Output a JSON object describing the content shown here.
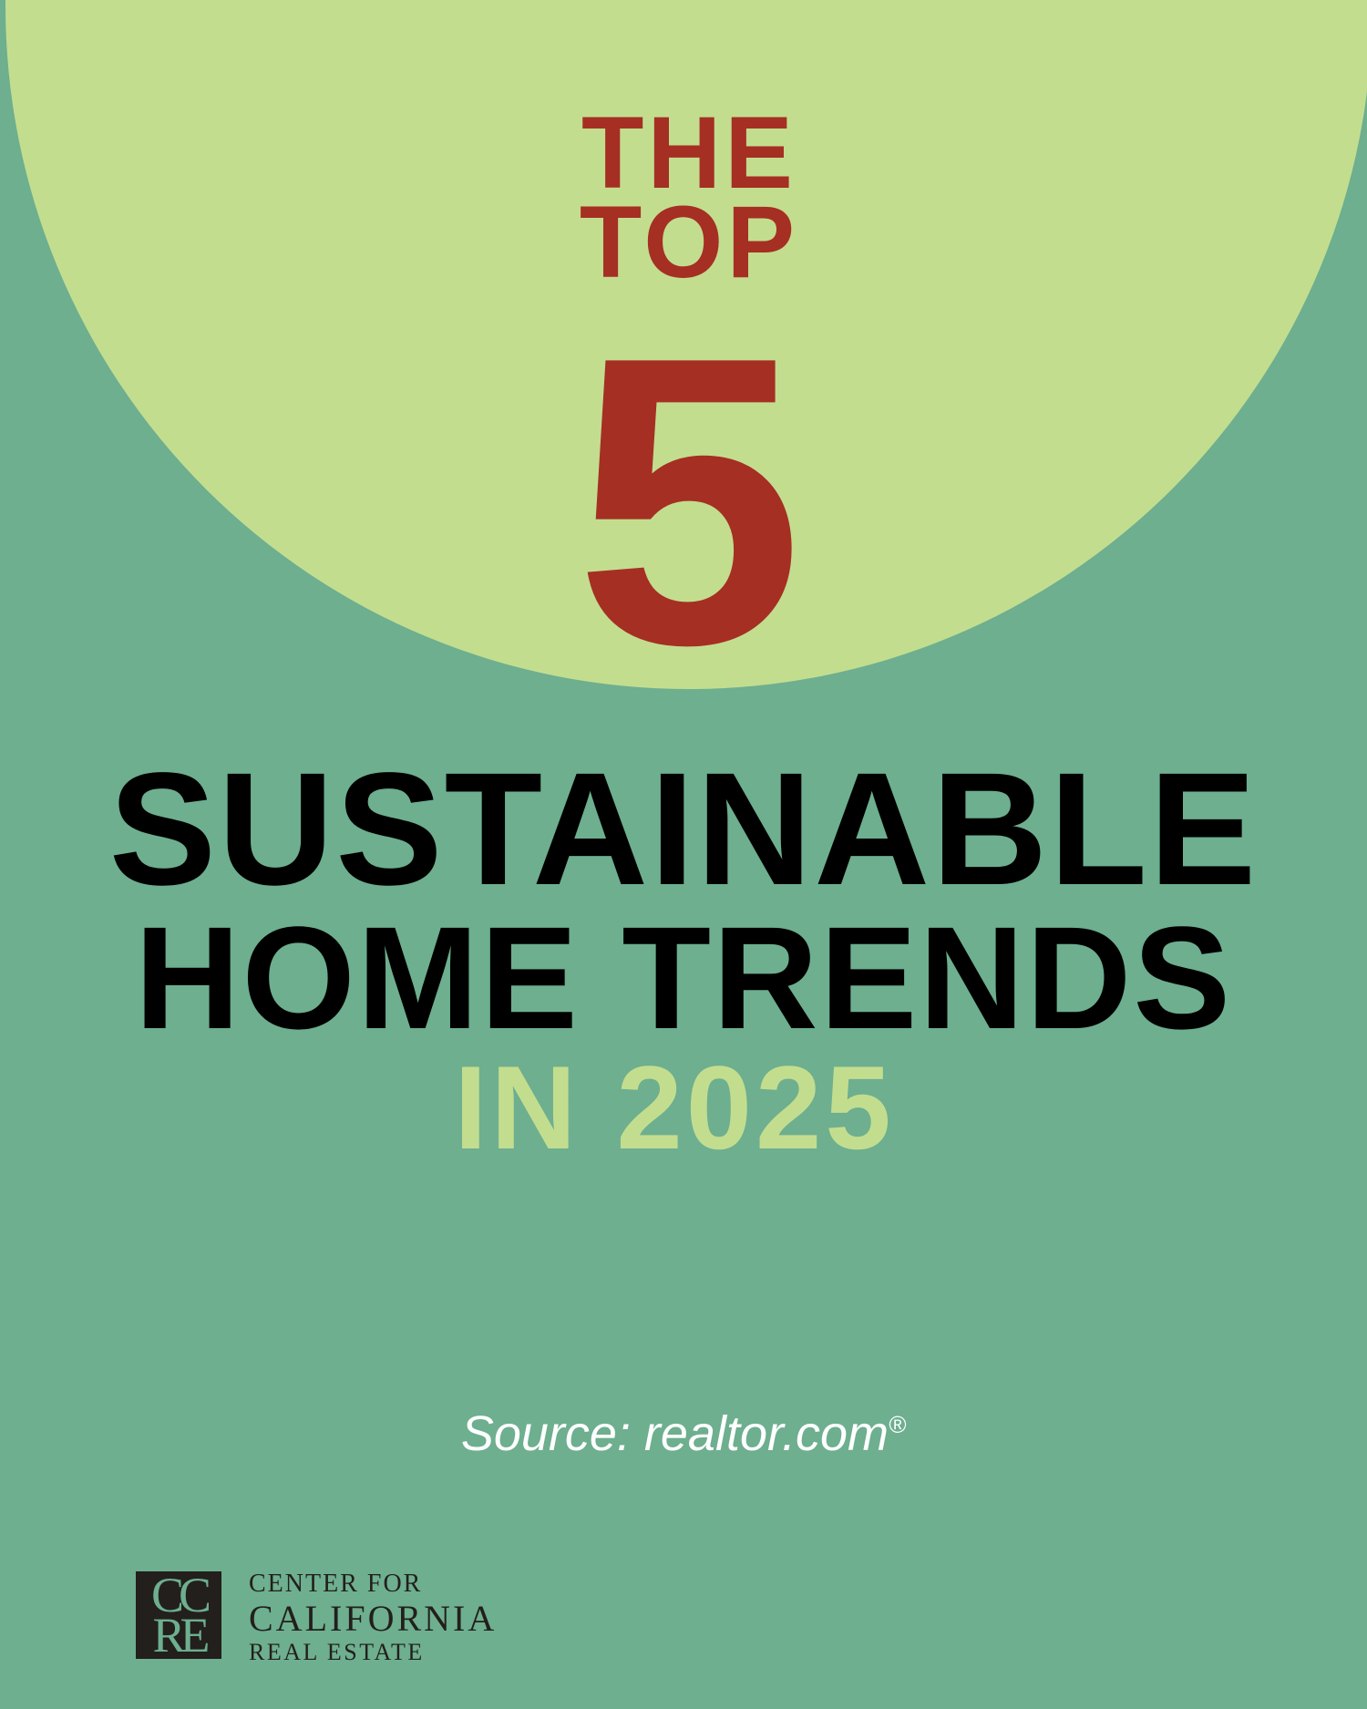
{
  "colors": {
    "background": "#6daf8f",
    "circle": "#c3dd8f",
    "accent_red": "#a52f23",
    "lime": "#c3dd8f",
    "text_dark": "#000000"
  },
  "headline": {
    "line_the": "THE",
    "line_top": "TOP",
    "number": "5",
    "line1": "SUSTAINABLE",
    "line2": "HOME TRENDS",
    "line3": "IN 2025"
  },
  "source": {
    "text": "Source: realtor.com",
    "mark": "®"
  },
  "logo": {
    "monogram_top": "CC",
    "monogram_bottom": "RE",
    "line1": "CENTER FOR",
    "line2": "CALIFORNIA",
    "line3": "REAL ESTATE"
  }
}
